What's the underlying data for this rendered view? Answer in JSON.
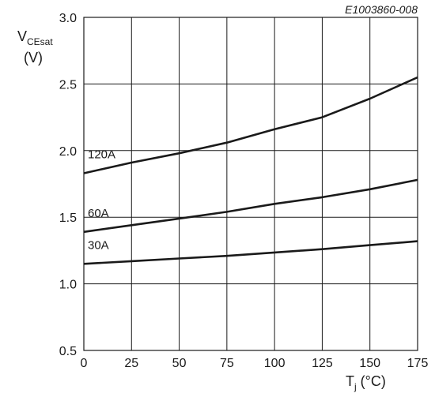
{
  "chart_data": {
    "type": "line",
    "document_id": "E1003860-008",
    "xlabel_main": "T",
    "xlabel_sub": "j",
    "xlabel_unit": " (°C)",
    "ylabel_main": "V",
    "ylabel_sub": "CEsat",
    "ylabel_unit": "(V)",
    "xlim": [
      0,
      175
    ],
    "ylim": [
      0.5,
      3.0
    ],
    "x_ticks": [
      "0",
      "25",
      "50",
      "75",
      "100",
      "125",
      "150",
      "175"
    ],
    "y_ticks": [
      "0.5",
      "1.0",
      "1.5",
      "2.0",
      "2.5",
      "3.0"
    ],
    "grid": true,
    "series": [
      {
        "name": "120A",
        "x": [
          0,
          25,
          50,
          75,
          100,
          125,
          150,
          175
        ],
        "y": [
          1.83,
          1.91,
          1.98,
          2.06,
          2.16,
          2.25,
          2.39,
          2.55
        ]
      },
      {
        "name": "60A",
        "x": [
          0,
          25,
          50,
          75,
          100,
          125,
          150,
          175
        ],
        "y": [
          1.39,
          1.44,
          1.49,
          1.54,
          1.6,
          1.65,
          1.71,
          1.78
        ]
      },
      {
        "name": "30A",
        "x": [
          0,
          25,
          50,
          75,
          100,
          125,
          150,
          175
        ],
        "y": [
          1.15,
          1.17,
          1.19,
          1.21,
          1.235,
          1.26,
          1.29,
          1.32
        ]
      }
    ]
  }
}
